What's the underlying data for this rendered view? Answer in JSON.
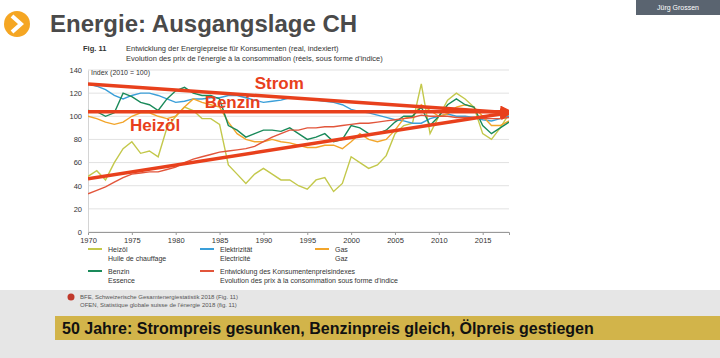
{
  "slide": {
    "title": "Energie: Ausgangslage CH",
    "caption": "50 Jahre: Strompreis gesunken, Benzinpreis gleich, Ölpreis gestiegen",
    "speaker": "Jürg Grossen"
  },
  "chart_data": {
    "type": "line",
    "figure": "Fig. 11",
    "title": "Entwicklung der Energiepreise für Konsumenten (real, indexiert)",
    "subtitle": "Evolution des prix de l'énergie à la consommation (réels, sous forme d'indice)",
    "y_label": "Index (2010 = 100)",
    "x": [
      1970,
      1971,
      1972,
      1973,
      1974,
      1975,
      1976,
      1977,
      1978,
      1979,
      1980,
      1981,
      1982,
      1983,
      1984,
      1985,
      1986,
      1987,
      1988,
      1989,
      1990,
      1991,
      1992,
      1993,
      1994,
      1995,
      1996,
      1997,
      1998,
      1999,
      2000,
      2001,
      2002,
      2003,
      2004,
      2005,
      2006,
      2007,
      2008,
      2009,
      2010,
      2011,
      2012,
      2013,
      2014,
      2015,
      2016,
      2017,
      2018
    ],
    "series": [
      {
        "name": "Heizöl",
        "name_fr": "Huile de chauffage",
        "color": "#c3c84b",
        "values": [
          48,
          53,
          45,
          60,
          72,
          78,
          68,
          70,
          65,
          90,
          100,
          108,
          105,
          98,
          98,
          93,
          58,
          50,
          42,
          50,
          55,
          50,
          45,
          45,
          40,
          37,
          45,
          47,
          35,
          42,
          65,
          60,
          55,
          58,
          66,
          85,
          92,
          94,
          128,
          85,
          100,
          114,
          120,
          115,
          108,
          85,
          80,
          90,
          102
        ]
      },
      {
        "name": "Elektrizität",
        "name_fr": "Electricité",
        "color": "#3a9fd9",
        "values": [
          128,
          126,
          123,
          118,
          115,
          118,
          120,
          120,
          118,
          115,
          112,
          113,
          115,
          115,
          116,
          116,
          118,
          118,
          116,
          114,
          112,
          113,
          114,
          116,
          116,
          115,
          114,
          113,
          112,
          110,
          106,
          104,
          103,
          101,
          99,
          97,
          96,
          94,
          94,
          98,
          100,
          102,
          100,
          100,
          99,
          97,
          96,
          98,
          100
        ]
      },
      {
        "name": "Gas",
        "name_fr": "Gaz",
        "color": "#f2a52b",
        "values": [
          100,
          98,
          95,
          93,
          95,
          100,
          103,
          103,
          100,
          98,
          100,
          108,
          115,
          112,
          110,
          108,
          95,
          85,
          80,
          78,
          78,
          80,
          78,
          77,
          75,
          73,
          73,
          75,
          75,
          72,
          78,
          85,
          80,
          78,
          80,
          88,
          98,
          100,
          110,
          105,
          100,
          102,
          108,
          110,
          108,
          100,
          92,
          92,
          96
        ]
      },
      {
        "name": "Benzin",
        "name_fr": "Essence",
        "color": "#1a8a5a",
        "values": [
          105,
          104,
          100,
          103,
          120,
          117,
          112,
          110,
          105,
          115,
          122,
          125,
          120,
          118,
          118,
          115,
          92,
          88,
          82,
          85,
          88,
          88,
          87,
          90,
          85,
          80,
          82,
          85,
          78,
          80,
          92,
          90,
          85,
          85,
          88,
          95,
          100,
          100,
          108,
          92,
          100,
          110,
          115,
          110,
          108,
          92,
          85,
          90,
          95
        ]
      },
      {
        "name": "Entwicklung des Konsumentenpreisindexes",
        "name_fr": "Evolution des prix à la consommation sous forme d'indice",
        "color": "#e2553b",
        "values": [
          33,
          36,
          39,
          43,
          47,
          50,
          51,
          52,
          52,
          54,
          56,
          60,
          63,
          65,
          67,
          69,
          70,
          71,
          72,
          74,
          78,
          82,
          85,
          88,
          88,
          90,
          90,
          91,
          91,
          92,
          93,
          94,
          94,
          95,
          96,
          97,
          98,
          99,
          101,
          100,
          100,
          100,
          99,
          99,
          99,
          98,
          98,
          98,
          99
        ]
      }
    ],
    "xlim": [
      1970,
      2018
    ],
    "xticks": [
      1970,
      1975,
      1980,
      1985,
      1990,
      1995,
      2000,
      2005,
      2010,
      2015
    ],
    "ylim": [
      0,
      140
    ],
    "yticks": [
      0,
      20,
      40,
      60,
      80,
      100,
      120,
      140
    ],
    "grid": true,
    "legend": "bottom",
    "annotations": [
      {
        "text": "Strom",
        "x": 1989,
        "y": 124,
        "arrow": [
          [
            1970,
            128
          ],
          [
            2018,
            103
          ]
        ]
      },
      {
        "text": "Benzin",
        "x": 1983.3,
        "y": 107,
        "arrow": [
          [
            1970,
            104
          ],
          [
            2018,
            104
          ]
        ]
      },
      {
        "text": "Heizöl",
        "x": 1974.8,
        "y": 87,
        "arrow": [
          [
            1970,
            46
          ],
          [
            2018,
            103
          ]
        ]
      }
    ],
    "source": [
      "BFE, Schweizerische Gesamtenergiestatistik 2018 (Fig. 11)",
      "OFEN, Statistique globale suisse de l'énergie 2018 (fig. 11)"
    ]
  }
}
